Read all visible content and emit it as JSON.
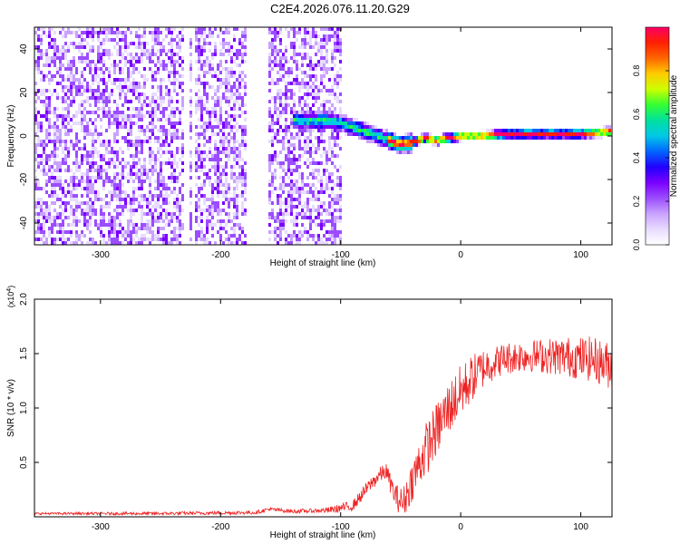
{
  "title": "C2E4.2026.076.11.20.G29",
  "colors": {
    "snr_line": "#ee2222",
    "axis": "#000000",
    "background": "#ffffff",
    "cmap": [
      "#ffffff",
      "#e8dcff",
      "#c9a3ff",
      "#9b4dff",
      "#7a00ff",
      "#2200ff",
      "#0066ff",
      "#00c8e6",
      "#00e0a0",
      "#33ff33",
      "#ccff00",
      "#ffcc00",
      "#ff6600",
      "#ff2000",
      "#ff0066"
    ]
  },
  "chart_data": [
    {
      "type": "heatmap",
      "name": "spectrogram",
      "xlabel": "Height of straight line (km)",
      "ylabel": "Frequency (Hz)",
      "xlim": [
        -355,
        126
      ],
      "ylim": [
        -50,
        50
      ],
      "x_ticks": [
        -300,
        -200,
        -100,
        0,
        100
      ],
      "x_tick_labels": [
        "-300",
        "-200",
        "-100",
        "0",
        "100"
      ],
      "y_ticks": [
        -40,
        -20,
        0,
        20,
        40
      ],
      "y_tick_labels": [
        "-40",
        "-20",
        "0",
        "20",
        "40"
      ],
      "colorbar": {
        "label": "Normalized spectral amplitude",
        "range": [
          0,
          1
        ],
        "ticks": [
          0.0,
          0.2,
          0.4,
          0.6,
          0.8
        ],
        "tick_labels": [
          "0.0",
          "0.2",
          "0.4",
          "0.6",
          "0.8"
        ]
      },
      "ridge": {
        "description": "peak frequency trace of the signal",
        "x": [
          -130,
          -110,
          -100,
          -90,
          -80,
          -70,
          -60,
          -50,
          -40,
          -30,
          -20,
          0,
          20,
          40,
          60,
          80,
          100,
          126
        ],
        "y": [
          7,
          7,
          6,
          4,
          2,
          0,
          -2,
          -4,
          -3,
          -1,
          -2,
          0,
          0,
          1,
          1,
          1,
          1,
          2
        ]
      },
      "noise_extent_x": [
        -355,
        -100
      ]
    },
    {
      "type": "line",
      "name": "snr",
      "xlabel": "Height of straight line (km)",
      "ylabel": "SNR (10 * v/v)",
      "y_multiplier_label": "(x10",
      "y_multiplier_exp": "4",
      "y_multiplier_close": ")",
      "xlim": [
        -355,
        126
      ],
      "ylim": [
        0,
        2.0
      ],
      "x_ticks": [
        -300,
        -200,
        -100,
        0,
        100
      ],
      "x_tick_labels": [
        "-300",
        "-200",
        "-100",
        "0",
        "100"
      ],
      "y_ticks": [
        0.5,
        1.0,
        1.5,
        2.0
      ],
      "y_tick_labels": [
        "0.5",
        "1.0",
        "1.5",
        "2.0"
      ],
      "envelope": {
        "x": [
          -355,
          -250,
          -170,
          -160,
          -140,
          -110,
          -90,
          -75,
          -68,
          -62,
          -55,
          -48,
          -40,
          -30,
          -20,
          -10,
          0,
          10,
          20,
          35,
          50,
          70,
          90,
          110,
          126
        ],
        "y": [
          0.03,
          0.03,
          0.04,
          0.07,
          0.05,
          0.06,
          0.1,
          0.3,
          0.38,
          0.42,
          0.2,
          0.12,
          0.35,
          0.6,
          0.8,
          1.0,
          1.15,
          1.28,
          1.38,
          1.45,
          1.48,
          1.48,
          1.47,
          1.45,
          1.38
        ]
      },
      "noise_amplitude": {
        "x": [
          -355,
          -120,
          -60,
          -30,
          0,
          30,
          60,
          100,
          126
        ],
        "y": [
          0.01,
          0.02,
          0.08,
          0.25,
          0.25,
          0.15,
          0.15,
          0.2,
          0.22
        ]
      }
    }
  ]
}
